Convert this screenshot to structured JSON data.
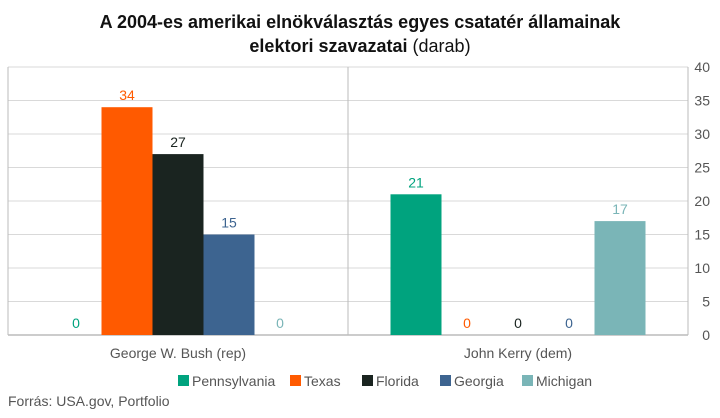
{
  "title": {
    "line1": "A 2004-es amerikai elnökválasztás egyes csatatér államainak",
    "line2_bold": "elektori szavazatai",
    "line2_unit": "(darab)"
  },
  "source": "Forrás: USA.gov, Portfolio",
  "chart_data": {
    "type": "bar",
    "categories": [
      "George W. Bush (rep)",
      "John Kerry (dem)"
    ],
    "series": [
      {
        "name": "Pennsylvania",
        "color": "#00A37E",
        "values": [
          0,
          21
        ]
      },
      {
        "name": "Texas",
        "color": "#FF5A00",
        "values": [
          34,
          0
        ]
      },
      {
        "name": "Florida",
        "color": "#1A2420",
        "values": [
          27,
          0
        ]
      },
      {
        "name": "Georgia",
        "color": "#3D6490",
        "values": [
          15,
          0
        ]
      },
      {
        "name": "Michigan",
        "color": "#7AB5B7",
        "values": [
          0,
          17
        ]
      }
    ],
    "ylim": [
      0,
      40
    ],
    "yticks": [
      0,
      5,
      10,
      15,
      20,
      25,
      30,
      35,
      40
    ],
    "y_axis_side": "right",
    "grid": true,
    "legend": "bottom",
    "data_labels": true
  }
}
